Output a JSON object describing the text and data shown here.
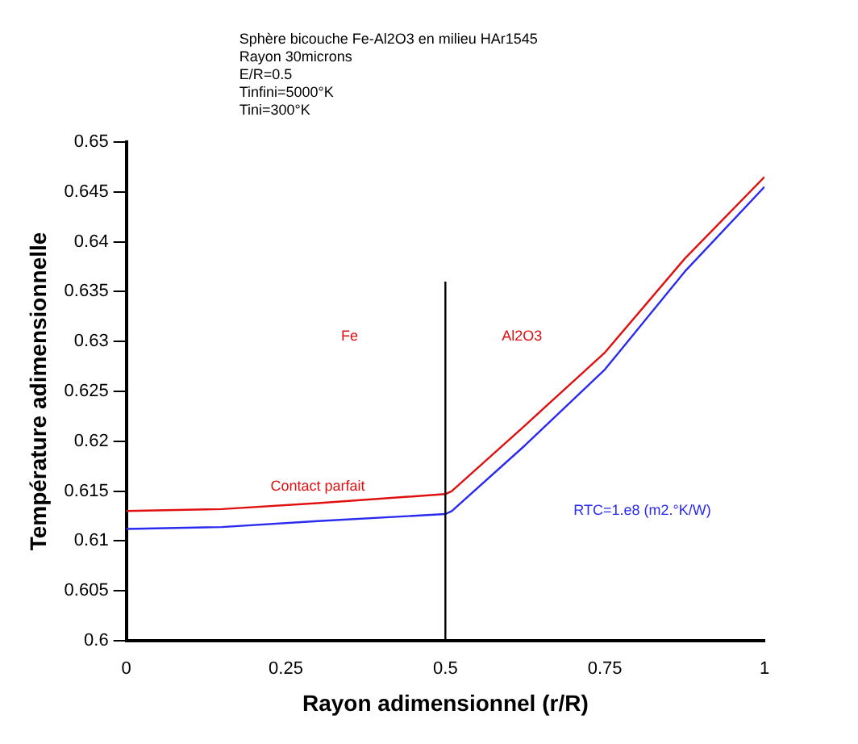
{
  "chart_data": {
    "type": "line",
    "title": "Sphère bicouche Fe-Al2O3 en milieu HAr1545",
    "xlabel": "Rayon adimensionnel (r/R)",
    "ylabel": "Température adimensionnelle",
    "series": [
      {
        "name": "Contact parfait",
        "color": "#e01010",
        "x": [
          0,
          0.15,
          0.3,
          0.5,
          0.51,
          0.625,
          0.75,
          0.875,
          1
        ],
        "values": [
          0.613,
          0.6132,
          0.6138,
          0.6147,
          0.615,
          0.6216,
          0.6289,
          0.6383,
          0.6465
        ]
      },
      {
        "name": "RTC=1.e8 (m2.°K/W)",
        "color": "#2a2af0",
        "x": [
          0,
          0.15,
          0.3,
          0.5,
          0.51,
          0.625,
          0.75,
          0.875,
          1
        ],
        "values": [
          0.6112,
          0.6114,
          0.612,
          0.6127,
          0.613,
          0.6196,
          0.6272,
          0.637,
          0.6455
        ]
      }
    ],
    "ref_lines": [
      {
        "axis": "x",
        "value": 0.5,
        "color": "#000000"
      }
    ],
    "annotations": [
      "Rayon 30microns",
      "E/R=0.5",
      "Tinfini=5000°K",
      "Tini=300°K",
      "Fe",
      "Al2O3"
    ],
    "xlim": [
      0,
      1
    ],
    "xticks": [
      0,
      0.25,
      0.5,
      0.75,
      1
    ],
    "ylim": [
      0.6,
      0.65
    ],
    "yticks": [
      0.6,
      0.605,
      0.61,
      0.615,
      0.62,
      0.625,
      0.63,
      0.635,
      0.64,
      0.645,
      0.65
    ],
    "grid": false,
    "legend": false,
    "marker": "none",
    "line_style": "solid"
  }
}
